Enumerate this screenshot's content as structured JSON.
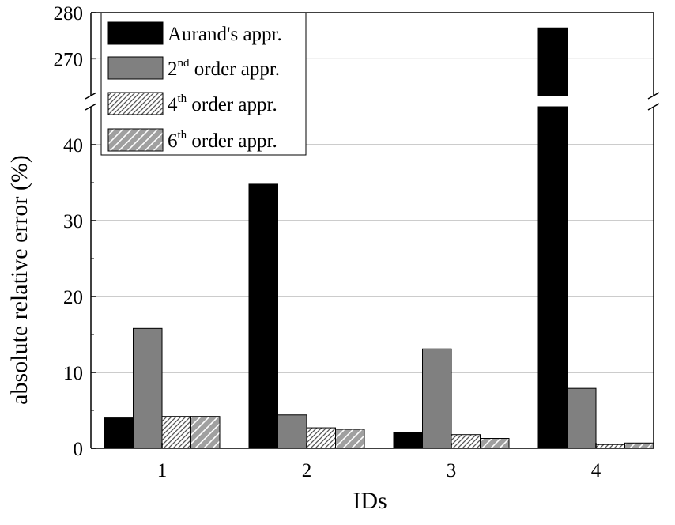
{
  "chart_data": {
    "type": "bar",
    "xlabel": "IDs",
    "ylabel": "absolute relative error (%)",
    "categories": [
      "1",
      "2",
      "3",
      "4"
    ],
    "series": [
      {
        "name": "Aurand's appr.",
        "name_base": "Aurand's appr.",
        "name_sup": "",
        "name_rest": "",
        "color": "#000000",
        "pattern": "solid",
        "values": [
          4.0,
          34.8,
          2.1,
          276.7
        ]
      },
      {
        "name": "2nd order appr.",
        "name_base": "2",
        "name_sup": "nd",
        "name_rest": " order appr.",
        "color": "#808080",
        "pattern": "solid",
        "values": [
          15.8,
          4.4,
          13.1,
          7.9
        ]
      },
      {
        "name": "4th order appr.",
        "name_base": "4",
        "name_sup": "th",
        "name_rest": " order appr.",
        "color": "#ffffff",
        "pattern": "dense-hatch",
        "values": [
          4.2,
          2.7,
          1.8,
          0.5
        ]
      },
      {
        "name": "6th order appr.",
        "name_base": "6",
        "name_sup": "th",
        "name_rest": " order appr.",
        "color": "#a0a0a0",
        "pattern": "wide-hatch",
        "values": [
          4.2,
          2.5,
          1.3,
          0.7
        ]
      }
    ],
    "y_axis_break": true,
    "ylim_lower": [
      0,
      45
    ],
    "ylim_upper": [
      262,
      280
    ],
    "yticks_lower": [
      "0",
      "10",
      "20",
      "30",
      "40"
    ],
    "yticks_upper": [
      "270",
      "280"
    ],
    "grid": true,
    "legend_position": "top-left"
  }
}
